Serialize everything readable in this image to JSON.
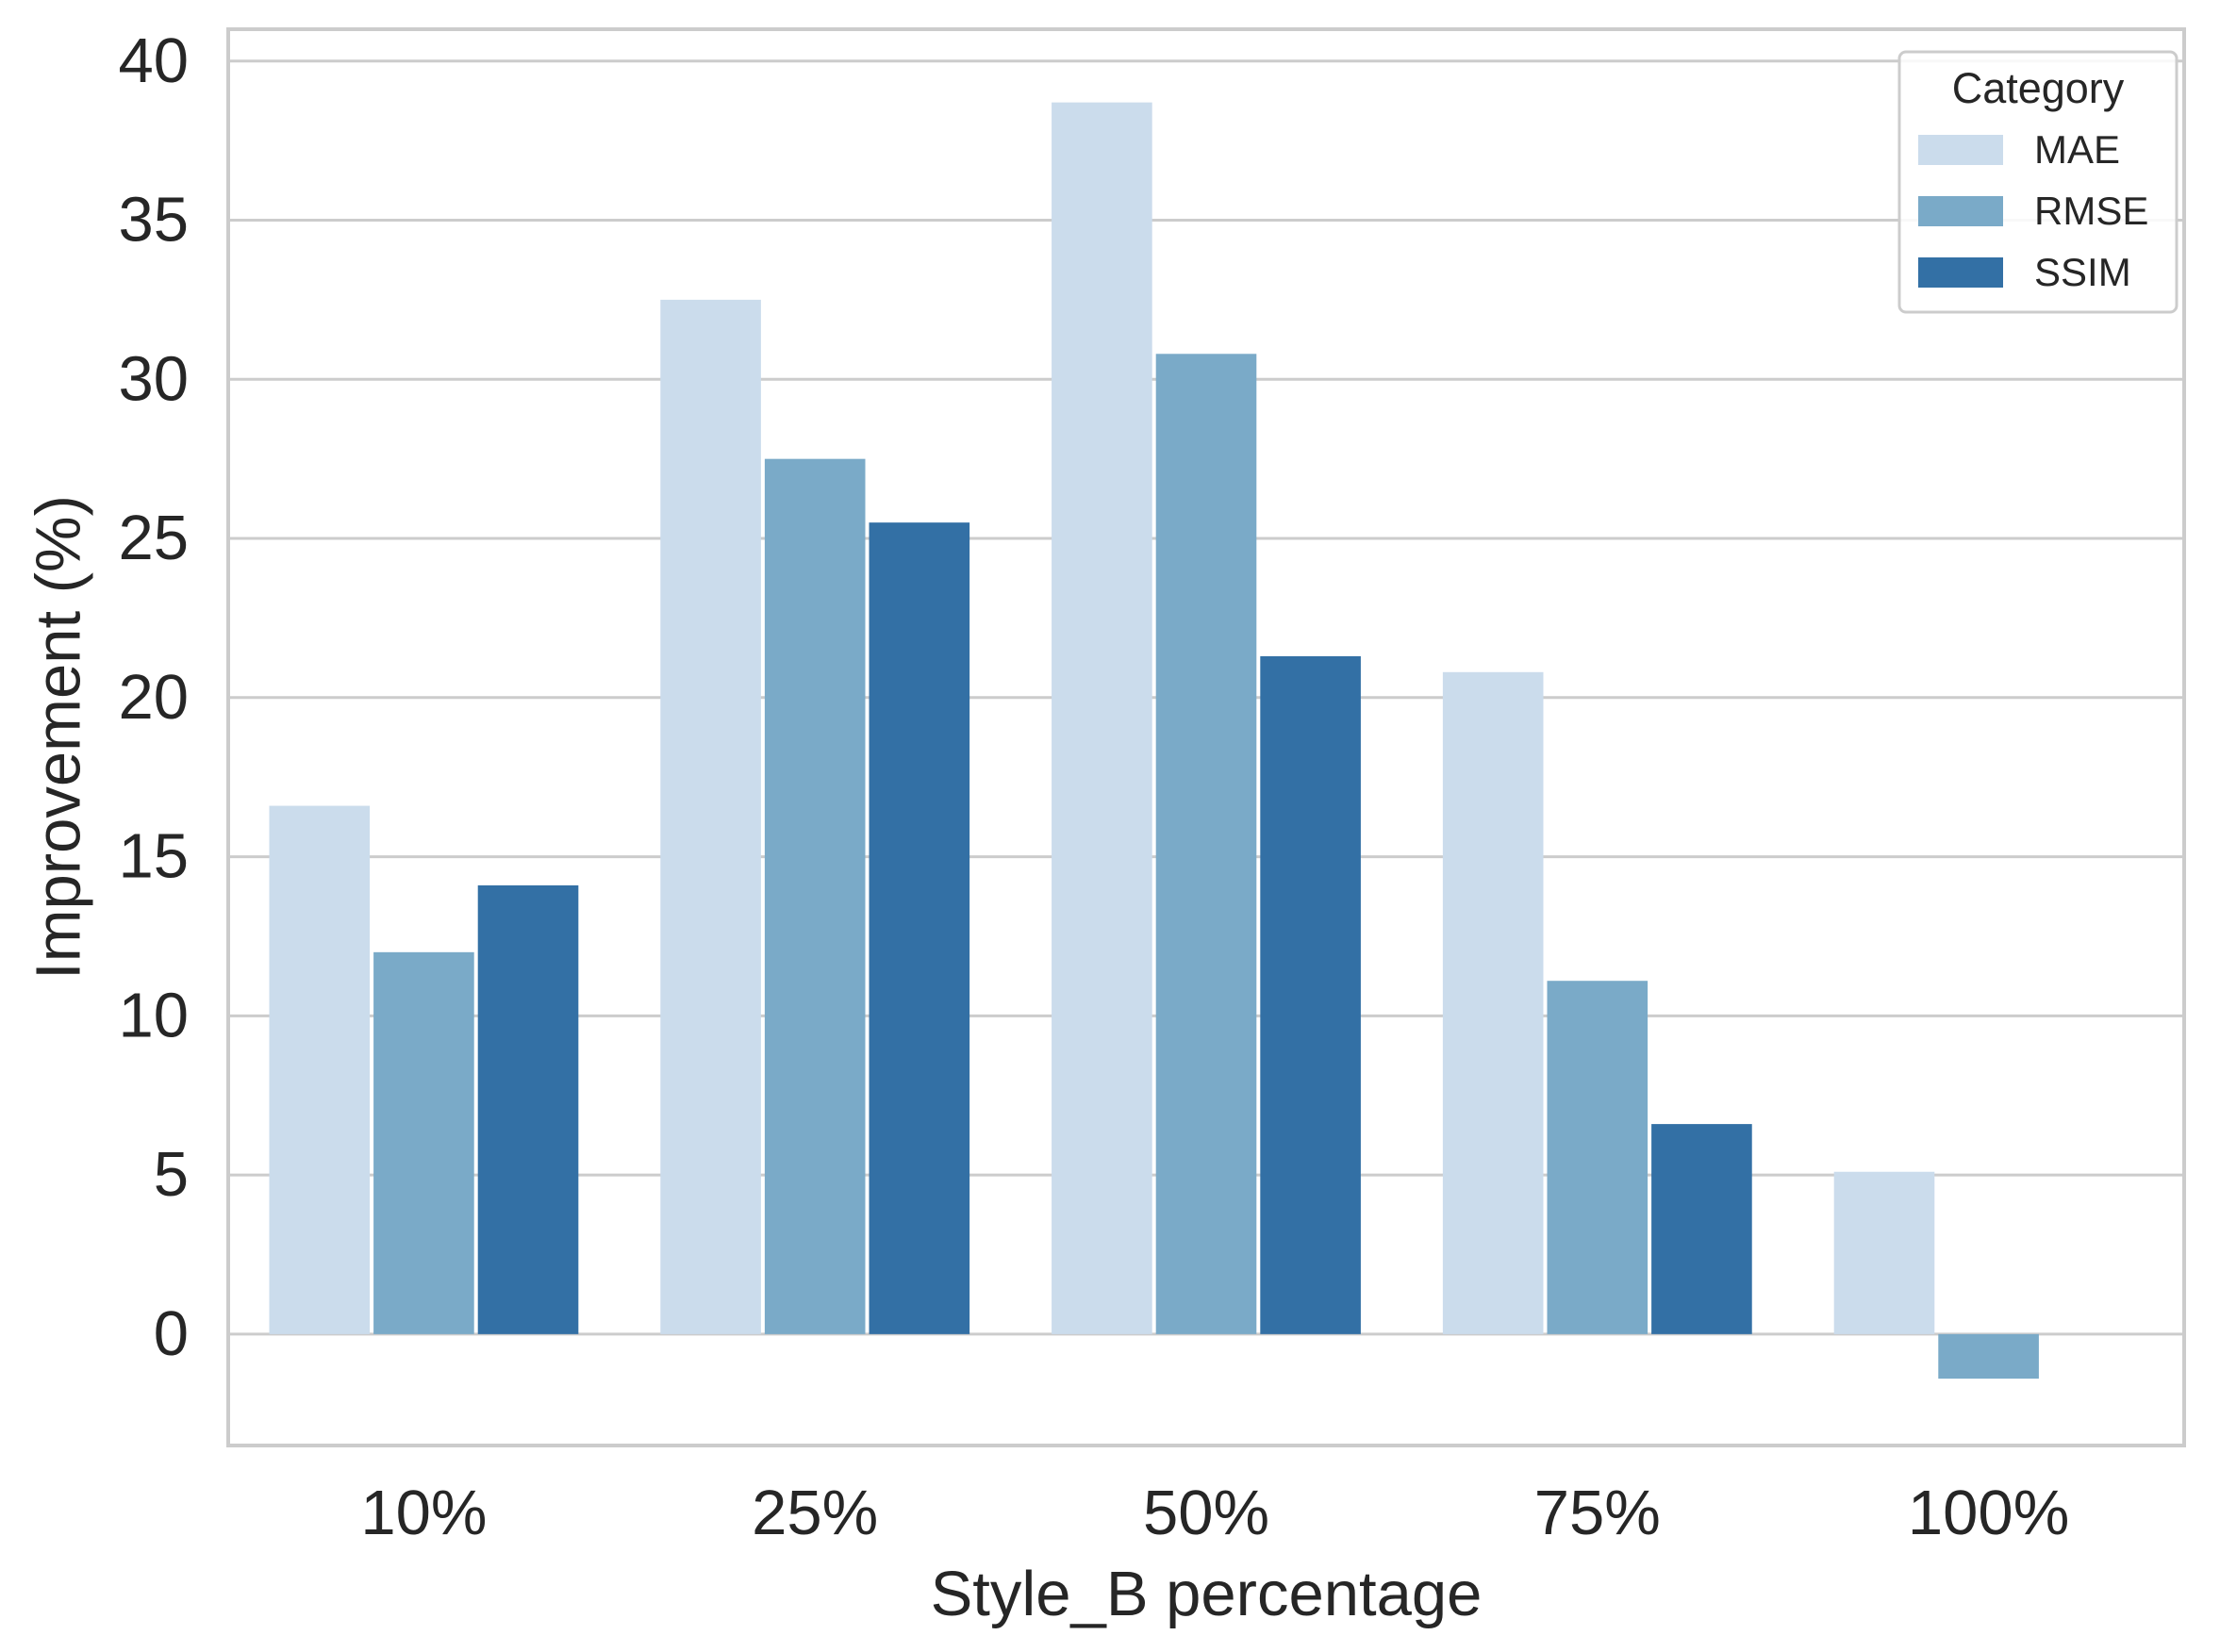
{
  "chart_data": {
    "type": "bar",
    "title": "",
    "xlabel": "Style_B percentage",
    "ylabel": "Improvement (%)",
    "categories": [
      "10%",
      "25%",
      "50%",
      "75%",
      "100%"
    ],
    "series": [
      {
        "name": "MAE",
        "color": "#cbdcec",
        "values": [
          16.6,
          32.5,
          38.7,
          20.8,
          5.1
        ]
      },
      {
        "name": "RMSE",
        "color": "#7aaac8",
        "values": [
          12.0,
          27.5,
          30.8,
          11.1,
          -1.4
        ]
      },
      {
        "name": "SSIM",
        "color": "#3370a5",
        "values": [
          14.1,
          25.5,
          21.3,
          6.6,
          null
        ]
      }
    ],
    "ylim": [
      -3.5,
      41
    ],
    "yticks": [
      0,
      5,
      10,
      15,
      20,
      25,
      30,
      35,
      40
    ],
    "grid": true,
    "legend": {
      "title": "Category",
      "placement": "top-right"
    }
  }
}
